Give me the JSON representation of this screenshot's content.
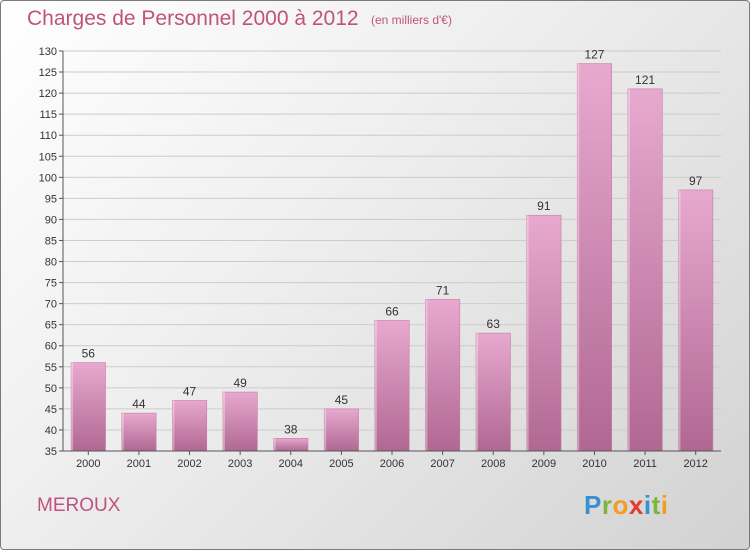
{
  "header": {
    "title": "Charges de Personnel 2000 à 2012",
    "subtitle": "(en milliers d'€)"
  },
  "footer": {
    "commune": "MEROUX",
    "logo": {
      "letters": [
        "P",
        "r",
        "o",
        "x",
        "i",
        "t",
        "i"
      ],
      "colors": [
        "#3a8fd0",
        "#7ab73c",
        "#f39c1f",
        "#e53a2d",
        "#3a8fd0",
        "#7ab73c",
        "#f39c1f"
      ]
    }
  },
  "colors": {
    "text_accent": "#c0527e",
    "bar_light": "#e8a9cf",
    "bar_dark": "#b06892",
    "axis": "#555555",
    "grid": "#cccccc"
  },
  "chart_data": {
    "type": "bar",
    "title": "Charges de Personnel 2000 à 2012",
    "subtitle": "(en milliers d'€)",
    "categories": [
      "2000",
      "2001",
      "2002",
      "2003",
      "2004",
      "2005",
      "2006",
      "2007",
      "2008",
      "2009",
      "2010",
      "2011",
      "2012"
    ],
    "values": [
      56,
      44,
      47,
      49,
      38,
      45,
      66,
      71,
      63,
      91,
      127,
      121,
      97
    ],
    "ylim": [
      35,
      130
    ],
    "ytick_step": 5,
    "grid": true,
    "show_data_labels": true
  }
}
